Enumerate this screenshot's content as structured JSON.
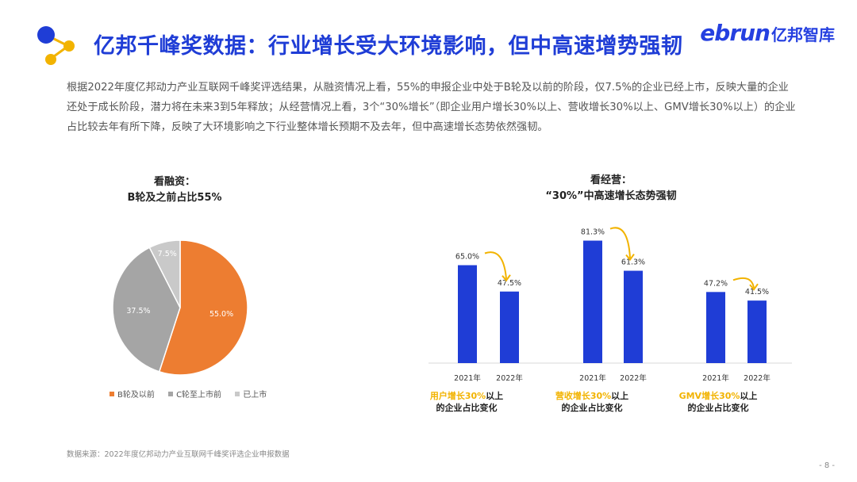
{
  "header": {
    "title": "亿邦千峰奖数据：行业增长受大环境影响，但中高速增势强韧",
    "brand_logo": "ebrun",
    "brand_name": "亿邦智库"
  },
  "paragraph": "根据2022年度亿邦动力产业互联网千峰奖评选结果，从融资情况上看，55%的申报企业中处于B轮及以前的阶段，仅7.5%的企业已经上市，反映大量的企业还处于成长阶段，潜力将在未来3到5年释放；从经营情况上看，3个“30%增长”（即企业用户增长30%以上、营收增长30%以上、GMV增长30%以上）的企业占比较去年有所下降，反映了大环境影响之下行业整体增长预期不及去年，但中高速增长态势依然强韧。",
  "colors": {
    "accent": "#1f3dd6",
    "bar": "#1f3dd6",
    "arrow": "#f2b300",
    "pie": [
      "#ed7d31",
      "#a5a5a5",
      "#c9c9c9"
    ]
  },
  "chart_data": [
    {
      "type": "pie",
      "title_line1": "看融资：",
      "title_line2": "B轮及之前占比55%",
      "slices": [
        {
          "label": "B轮及以前",
          "value": 55.0,
          "display": "55.0%"
        },
        {
          "label": "C轮至上市前",
          "value": 37.5,
          "display": "37.5%"
        },
        {
          "label": "已上市",
          "value": 7.5,
          "display": "7.5%"
        }
      ],
      "legend_position": "bottom"
    },
    {
      "type": "bar",
      "title_line1": "看经营：",
      "title_line2": "“30%”中高速增长态势强韧",
      "groups": [
        {
          "caption_hl": "用户增长30%",
          "caption_rest": "以上",
          "caption_line2": "的企业占比变化",
          "bars": [
            {
              "x": "2021年",
              "value": 65.0,
              "display": "65.0%"
            },
            {
              "x": "2022年",
              "value": 47.5,
              "display": "47.5%"
            }
          ]
        },
        {
          "caption_hl": "营收增长30%",
          "caption_rest": "以上",
          "caption_line2": "的企业占比变化",
          "bars": [
            {
              "x": "2021年",
              "value": 81.3,
              "display": "81.3%"
            },
            {
              "x": "2022年",
              "value": 61.3,
              "display": "61.3%"
            }
          ]
        },
        {
          "caption_hl": "GMV增长30%",
          "caption_rest": "以上",
          "caption_line2": "的企业占比变化",
          "bars": [
            {
              "x": "2021年",
              "value": 47.2,
              "display": "47.2%"
            },
            {
              "x": "2022年",
              "value": 41.5,
              "display": "41.5%"
            }
          ]
        }
      ]
    }
  ],
  "footer": {
    "source": "数据来源：2022年度亿邦动力产业互联网千峰奖评选企业申报数据",
    "page": "- 8 -"
  }
}
